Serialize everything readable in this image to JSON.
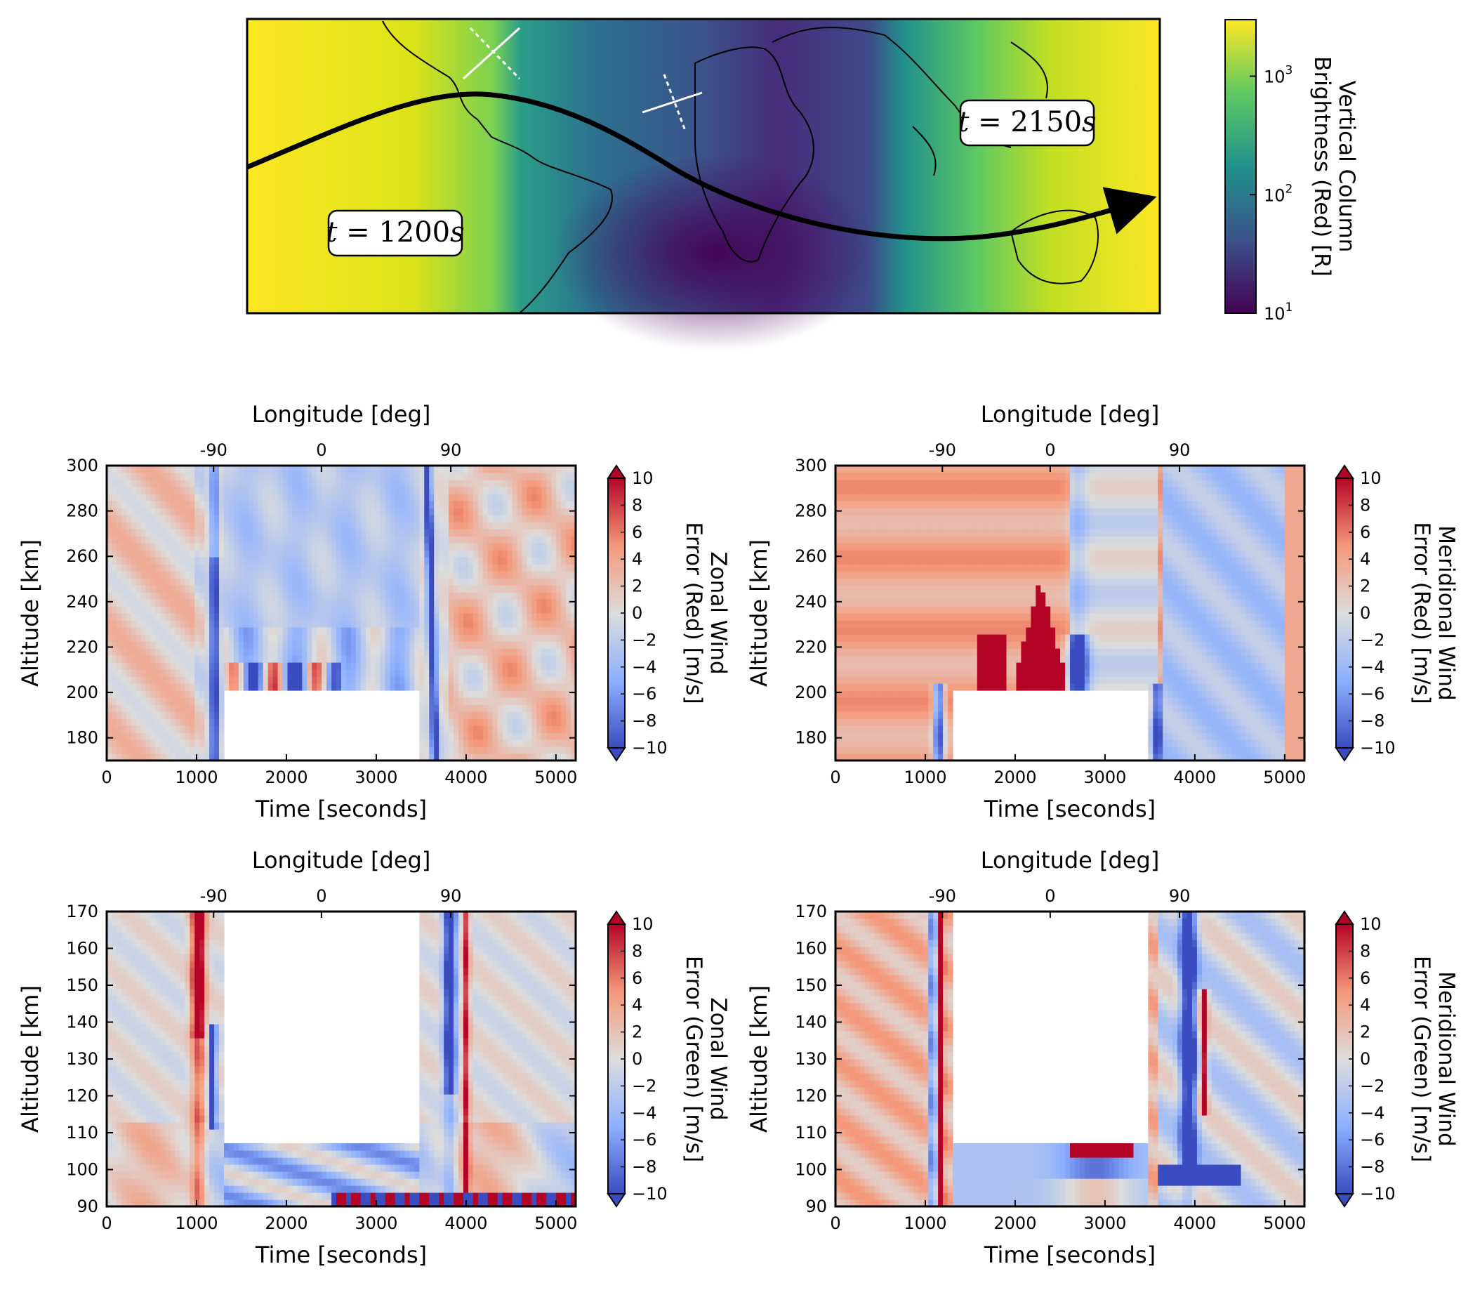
{
  "map": {
    "colorbar": {
      "title_lines": [
        "Vertical Column",
        "Brightness (Red) [R]"
      ],
      "scale": "log",
      "range": [
        10,
        3000
      ],
      "ticks": [
        {
          "base": "10",
          "exp": "1",
          "value": 10
        },
        {
          "base": "10",
          "exp": "2",
          "value": 100
        },
        {
          "base": "10",
          "exp": "3",
          "value": 1000
        }
      ],
      "colormap": [
        "#440154",
        "#3b528b",
        "#21918c",
        "#5ec962",
        "#fde725"
      ]
    },
    "labels": {
      "t_left": {
        "italic": "t",
        "rest": " = 1200",
        "unit": "s"
      },
      "t_right": {
        "italic": "t",
        "rest": " = 2150",
        "unit": "s"
      }
    }
  },
  "chart_data": [
    {
      "type": "heatmap",
      "xlabel": "Time [seconds]",
      "ylabel": "Altitude [km]",
      "top_xlabel": "Longitude [deg]",
      "xlim": [
        0,
        5220
      ],
      "ylim": [
        170,
        300
      ],
      "xticks": [
        0,
        1000,
        2000,
        3000,
        4000,
        5000
      ],
      "yticks": [
        180,
        200,
        220,
        240,
        260,
        280,
        300
      ],
      "top_ticks": [
        {
          "label": "-90",
          "time": 1190
        },
        {
          "label": "0",
          "time": 2390
        },
        {
          "label": "90",
          "time": 3830
        }
      ],
      "colorbar": {
        "title_lines": [
          "Zonal Wind",
          "Error (Red) [m/s]"
        ],
        "range": [
          -10,
          10
        ],
        "ticks": [
          10,
          8,
          6,
          4,
          2,
          0,
          -2,
          -4,
          -6,
          -8,
          -10
        ]
      },
      "masked_region": {
        "t": [
          1280,
          3500
        ],
        "alt": [
          170,
          201
        ]
      }
    },
    {
      "type": "heatmap",
      "xlabel": "Time [seconds]",
      "ylabel": "Altitude [km]",
      "top_xlabel": "Longitude [deg]",
      "xlim": [
        0,
        5220
      ],
      "ylim": [
        170,
        300
      ],
      "xticks": [
        0,
        1000,
        2000,
        3000,
        4000,
        5000
      ],
      "yticks": [
        180,
        200,
        220,
        240,
        260,
        280,
        300
      ],
      "top_ticks": [
        {
          "label": "-90",
          "time": 1190
        },
        {
          "label": "0",
          "time": 2390
        },
        {
          "label": "90",
          "time": 3830
        }
      ],
      "colorbar": {
        "title_lines": [
          "Meridional Wind",
          "Error (Red) [m/s]"
        ],
        "range": [
          -10,
          10
        ],
        "ticks": [
          10,
          8,
          6,
          4,
          2,
          0,
          -2,
          -4,
          -6,
          -8,
          -10
        ]
      },
      "masked_region": {
        "t": [
          1280,
          3500
        ],
        "alt": [
          170,
          201
        ]
      }
    },
    {
      "type": "heatmap",
      "xlabel": "Time [seconds]",
      "ylabel": "Altitude [km]",
      "top_xlabel": "Longitude [deg]",
      "xlim": [
        0,
        5220
      ],
      "ylim": [
        90,
        170
      ],
      "xticks": [
        0,
        1000,
        2000,
        3000,
        4000,
        5000
      ],
      "yticks": [
        90,
        100,
        110,
        120,
        130,
        140,
        150,
        160,
        170
      ],
      "top_ticks": [
        {
          "label": "-90",
          "time": 1190
        },
        {
          "label": "0",
          "time": 2390
        },
        {
          "label": "90",
          "time": 3830
        }
      ],
      "colorbar": {
        "title_lines": [
          "Zonal Wind",
          "Error (Green) [m/s]"
        ],
        "range": [
          -10,
          10
        ],
        "ticks": [
          10,
          8,
          6,
          4,
          2,
          0,
          -2,
          -4,
          -6,
          -8,
          -10
        ]
      },
      "masked_region": {
        "t": [
          1280,
          3500
        ],
        "alt": [
          107,
          170
        ]
      }
    },
    {
      "type": "heatmap",
      "xlabel": "Time [seconds]",
      "ylabel": "Altitude [km]",
      "top_xlabel": "Longitude [deg]",
      "xlim": [
        0,
        5220
      ],
      "ylim": [
        90,
        170
      ],
      "xticks": [
        0,
        1000,
        2000,
        3000,
        4000,
        5000
      ],
      "yticks": [
        90,
        100,
        110,
        120,
        130,
        140,
        150,
        160,
        170
      ],
      "top_ticks": [
        {
          "label": "-90",
          "time": 1190
        },
        {
          "label": "0",
          "time": 2390
        },
        {
          "label": "90",
          "time": 3830
        }
      ],
      "colorbar": {
        "title_lines": [
          "Meridional Wind",
          "Error (Green) [m/s]"
        ],
        "range": [
          -10,
          10
        ],
        "ticks": [
          10,
          8,
          6,
          4,
          2,
          0,
          -2,
          -4,
          -6,
          -8,
          -10
        ]
      },
      "masked_region": {
        "t": [
          1280,
          3500
        ],
        "alt": [
          107,
          170
        ]
      }
    }
  ]
}
